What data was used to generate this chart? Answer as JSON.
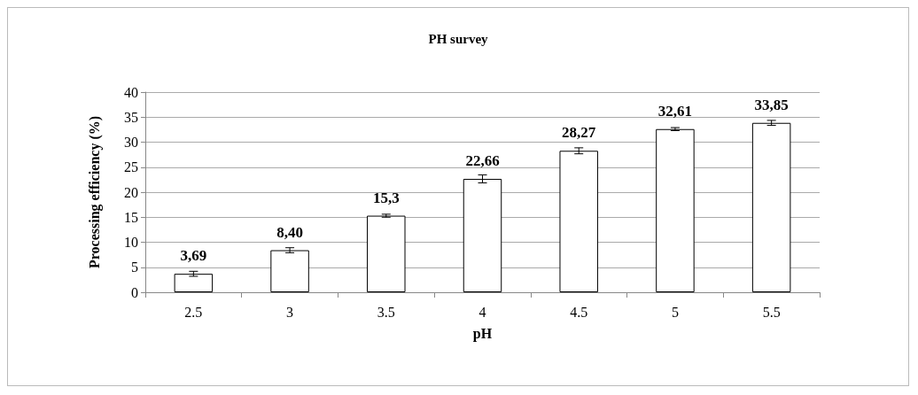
{
  "chart_data": {
    "type": "bar",
    "title": "PH survey",
    "xlabel": "pH",
    "ylabel": "Processing efficiency (%)",
    "categories": [
      "2.5",
      "3",
      "3.5",
      "4",
      "4.5",
      "5",
      "5.5"
    ],
    "values": [
      3.69,
      8.4,
      15.3,
      22.66,
      28.27,
      32.61,
      33.85
    ],
    "value_labels": [
      "3,69",
      "8,40",
      "15,3",
      "22,66",
      "28,27",
      "32,61",
      "33,85"
    ],
    "errors": [
      0.5,
      0.5,
      0.3,
      0.8,
      0.6,
      0.3,
      0.5
    ],
    "color": "#ffffff",
    "ylim": [
      0,
      40
    ],
    "yticks": [
      0,
      5,
      10,
      15,
      20,
      25,
      30,
      35,
      40
    ],
    "grid": "y"
  }
}
